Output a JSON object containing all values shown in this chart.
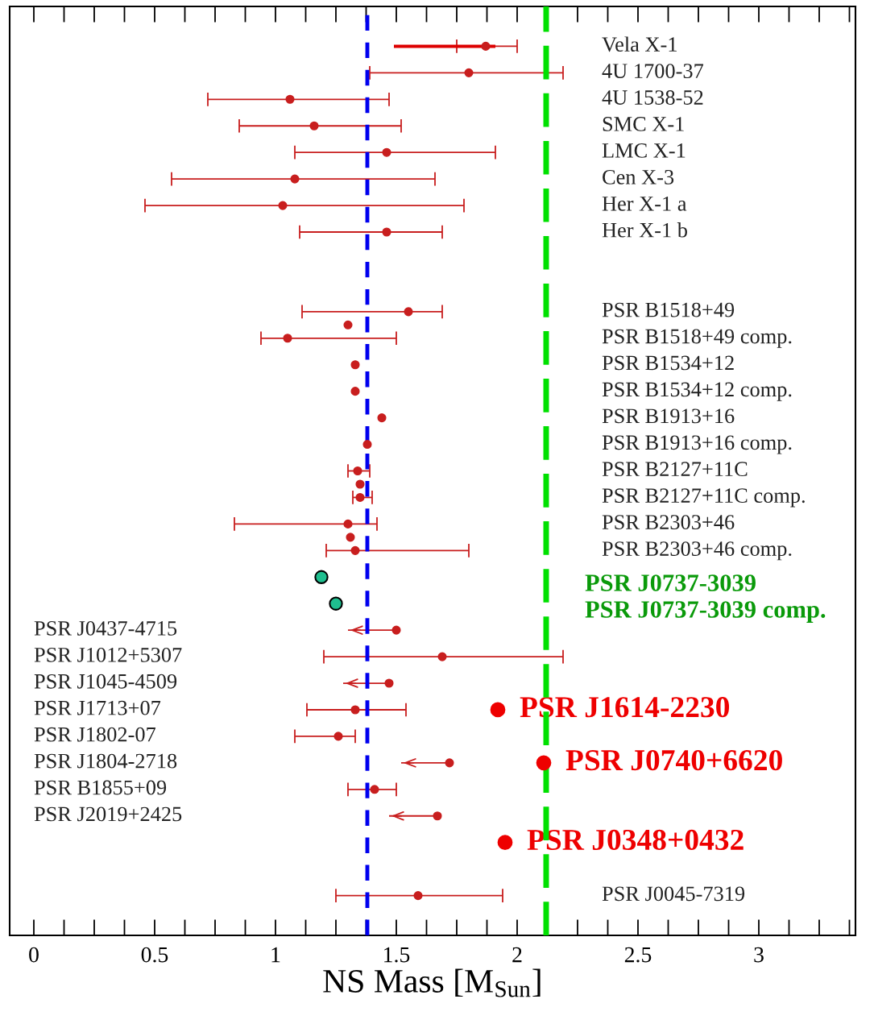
{
  "chart_data": {
    "type": "scatter",
    "orientation": "horizontal",
    "xlabel": "NS Mass [M$_{Sun}$]",
    "marker": "circle",
    "grid": false,
    "xlim": [
      -0.1,
      3.4
    ],
    "xticks": [
      0,
      0.5,
      1,
      1.5,
      2,
      2.5,
      3
    ],
    "categories": [
      "Vela X-1",
      "4U 1700-37",
      "4U 1538-52",
      "SMC X-1",
      "LMC X-1",
      "Cen X-3",
      "Her X-1 a",
      "Her X-1 b",
      null,
      null,
      "PSR B1518+49",
      "PSR B1518+49 comp.",
      "PSR B1534+12",
      "PSR B1534+12 comp.",
      "PSR B1913+16",
      "PSR B1913+16 comp.",
      "PSR B2127+11C",
      "PSR B2127+11C comp.",
      "PSR B2303+46",
      "PSR B2303+46 comp.",
      null,
      null,
      "PSR J0437-4715",
      "PSR J1012+5307",
      "PSR J1045-4509",
      "PSR J1713+07",
      "PSR J1802-07",
      "PSR J1804-2718",
      "PSR B1855+09",
      "PSR J2019+2425",
      null,
      null,
      "PSR J0045-7319"
    ],
    "ref_lines": [
      {
        "axis": "x",
        "value": 1.38,
        "color": "#0000ee",
        "line_style": "dashed"
      },
      {
        "axis": "x",
        "value": 2.12,
        "color": "#00e000",
        "line_style": "dashed"
      }
    ],
    "series": [
      {
        "color": "#c81e1e",
        "values": [
          1.87,
          1.8,
          1.06,
          1.16,
          1.46,
          1.08,
          1.03,
          1.46,
          null,
          null,
          1.55,
          1.05,
          1.33,
          1.33,
          1.44,
          1.38,
          1.34,
          1.35,
          1.3,
          1.33,
          null,
          null,
          1.5,
          1.69,
          1.47,
          1.33,
          1.26,
          1.72,
          1.41,
          1.67,
          null,
          null,
          1.59
        ],
        "errors": [
          [
            1.75,
            2.0
          ],
          [
            1.39,
            2.19
          ],
          [
            0.72,
            1.47
          ],
          [
            0.85,
            1.52
          ],
          [
            1.08,
            1.91
          ],
          [
            0.57,
            1.66
          ],
          [
            0.46,
            1.78
          ],
          [
            1.1,
            1.69
          ],
          null,
          null,
          [
            1.11,
            1.69
          ],
          [
            0.94,
            1.5
          ],
          null,
          null,
          null,
          null,
          [
            1.3,
            1.39
          ],
          [
            1.32,
            1.4
          ],
          [
            0.83,
            1.42
          ],
          [
            1.21,
            1.8
          ],
          null,
          null,
          [
            1.3,
            1.5
          ],
          [
            1.2,
            2.19
          ],
          [
            1.28,
            1.47
          ],
          [
            1.13,
            1.54
          ],
          [
            1.08,
            1.33
          ],
          [
            1.52,
            1.72
          ],
          [
            1.3,
            1.5
          ],
          [
            1.47,
            1.67
          ],
          null,
          null,
          [
            1.25,
            1.94
          ]
        ]
      },
      {
        "color": "#c81e1e",
        "values": [
          null,
          null,
          null,
          null,
          null,
          null,
          null,
          null,
          null,
          null,
          1.3,
          null,
          null,
          null,
          null,
          null,
          1.35,
          null,
          1.31,
          null,
          null,
          null,
          null,
          null,
          null,
          null,
          null,
          null,
          null,
          null,
          null,
          null,
          null
        ]
      },
      {
        "type": "bar",
        "color": "#dd0000",
        "base": [
          1.49,
          null,
          null,
          null,
          null,
          null,
          null,
          null,
          null,
          null,
          null,
          null,
          null,
          null,
          null,
          null,
          null,
          null,
          null,
          null,
          null,
          null,
          null,
          null,
          null,
          null,
          null,
          null,
          null,
          null,
          null,
          null,
          null
        ],
        "values": [
          0.42,
          null,
          null,
          null,
          null,
          null,
          null,
          null,
          null,
          null,
          null,
          null,
          null,
          null,
          null,
          null,
          null,
          null,
          null,
          null,
          null,
          null,
          null,
          null,
          null,
          null,
          null,
          null,
          null,
          null,
          null,
          null,
          null
        ]
      },
      {
        "name": "PSR J0737-3039",
        "color": "#1fbf8f",
        "values": [
          null,
          null,
          null,
          null,
          null,
          null,
          null,
          null,
          null,
          null,
          null,
          null,
          null,
          null,
          null,
          null,
          null,
          null,
          null,
          null,
          1.19,
          null,
          null,
          null,
          null,
          null,
          null,
          null,
          null,
          null,
          null,
          null,
          null
        ]
      },
      {
        "name": "PSR J0737-3039 comp.",
        "color": "#1fbf8f",
        "values": [
          null,
          null,
          null,
          null,
          null,
          null,
          null,
          null,
          null,
          null,
          null,
          null,
          null,
          null,
          null,
          null,
          null,
          null,
          null,
          null,
          null,
          1.25,
          null,
          null,
          null,
          null,
          null,
          null,
          null,
          null,
          null,
          null,
          null
        ]
      },
      {
        "name": "PSR J1614-2230",
        "color": "#ee0000",
        "values": [
          null,
          null,
          null,
          null,
          null,
          null,
          null,
          null,
          null,
          null,
          null,
          null,
          null,
          null,
          null,
          null,
          null,
          null,
          null,
          null,
          null,
          null,
          null,
          null,
          null,
          1.92,
          null,
          null,
          null,
          null,
          null,
          null,
          null
        ]
      },
      {
        "name": "PSR J0740+6620",
        "color": "#ee0000",
        "values": [
          null,
          null,
          null,
          null,
          null,
          null,
          null,
          null,
          null,
          null,
          null,
          null,
          null,
          null,
          null,
          null,
          null,
          null,
          null,
          null,
          null,
          null,
          null,
          null,
          null,
          null,
          null,
          2.11,
          null,
          null,
          null,
          null,
          null
        ]
      },
      {
        "name": "PSR J0348+0432",
        "color": "#ee0000",
        "values": [
          null,
          null,
          null,
          null,
          null,
          null,
          null,
          null,
          null,
          null,
          null,
          null,
          null,
          null,
          null,
          null,
          null,
          null,
          null,
          null,
          null,
          null,
          null,
          null,
          null,
          null,
          null,
          null,
          null,
          null,
          1.95,
          null,
          null
        ]
      }
    ]
  }
}
